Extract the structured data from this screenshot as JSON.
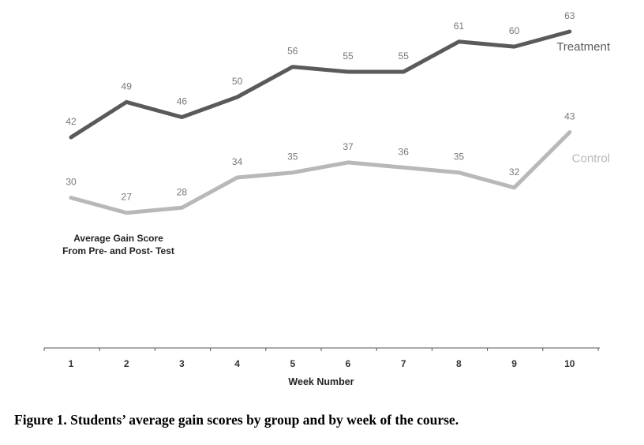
{
  "chart_data": {
    "type": "line",
    "categories": [
      "1",
      "2",
      "3",
      "4",
      "5",
      "6",
      "7",
      "8",
      "9",
      "10"
    ],
    "series": [
      {
        "name": "Treatment",
        "values": [
          42,
          49,
          46,
          50,
          56,
          55,
          55,
          61,
          60,
          63
        ],
        "color": "#5a5a5a"
      },
      {
        "name": "Control",
        "values": [
          30,
          27,
          28,
          34,
          35,
          37,
          36,
          35,
          32,
          43
        ],
        "color": "#b8b8b8"
      }
    ],
    "xlabel": "Week Number",
    "ylabel_lines": [
      "Average Gain Score",
      "From Pre- and Post- Test"
    ],
    "ylim": [
      0,
      70
    ],
    "grid": false,
    "legend": "inline-right"
  },
  "caption": "Figure 1. Students’ average gain scores by group and by week of the course."
}
